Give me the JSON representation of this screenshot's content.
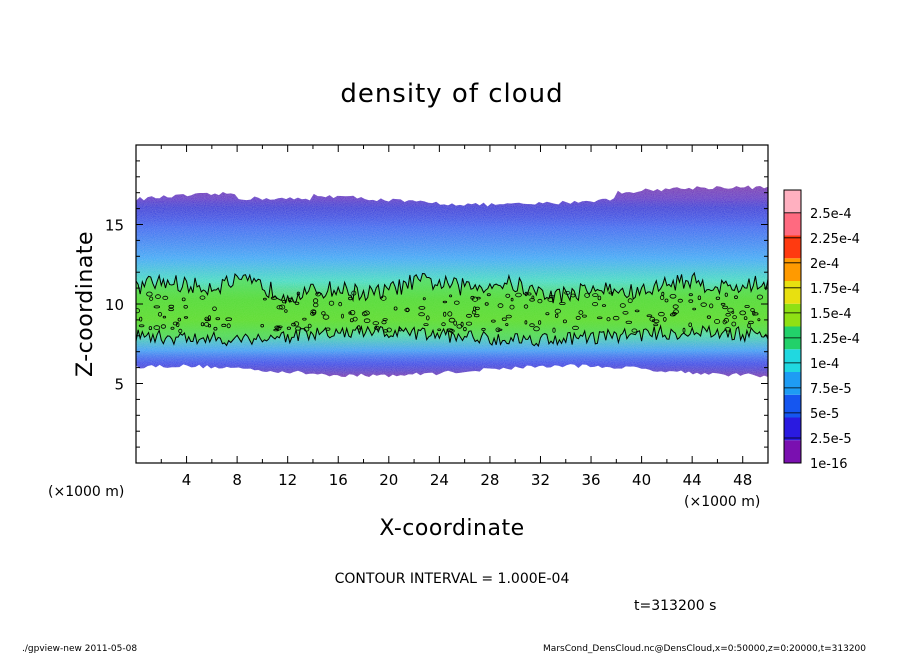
{
  "chart_data": {
    "type": "heatmap",
    "title": "density of cloud",
    "xlabel": "X-coordinate",
    "ylabel": "Z-coordinate",
    "x_unit": "(×1000 m)",
    "y_unit": "(×1000 m)",
    "xlim": [
      0,
      50
    ],
    "ylim": [
      0,
      20
    ],
    "x_ticks": [
      4,
      8,
      12,
      16,
      20,
      24,
      28,
      32,
      36,
      40,
      44,
      48
    ],
    "y_ticks": [
      5,
      10,
      15
    ],
    "colorbar": {
      "levels": [
        "1e-16",
        "2.5e-5",
        "5e-5",
        "7.5e-5",
        "1e-4",
        "1.25e-4",
        "1.5e-4",
        "1.75e-4",
        "2e-4",
        "2.25e-4",
        "2.5e-4"
      ],
      "colors": [
        "#7a10b0",
        "#2a1ae0",
        "#1556f0",
        "#1e9cf4",
        "#20d8e0",
        "#22d16a",
        "#8fe014",
        "#e8e010",
        "#ff9a00",
        "#ff3a10",
        "#ff6a80",
        "#ffb0c0"
      ]
    },
    "cloud": {
      "bottom_z": 5.8,
      "top_z": 16.6,
      "core_z": [
        8.0,
        11.0
      ],
      "contour_level": "1e-4"
    },
    "contour_interval_text": "CONTOUR INTERVAL = 1.000E-04",
    "time_text": "t=313200 s"
  },
  "footer": {
    "left": "./gpview-new  2011-05-08",
    "right": "MarsCond_DensCloud.nc@DensCloud,x=0:50000,z=0:20000,t=313200"
  }
}
